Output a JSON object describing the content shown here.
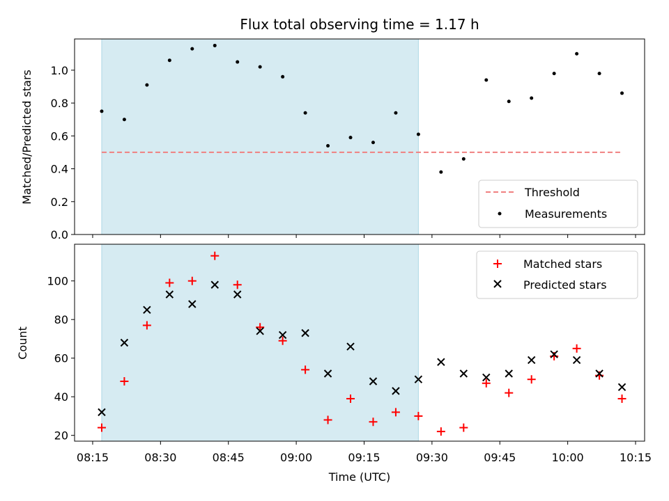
{
  "chart_data": [
    {
      "type": "scatter",
      "title": "Flux total observing time = 1.17 h",
      "ylabel": "Matched/Predicted stars",
      "ylim": [
        0,
        1.19
      ],
      "yticks": [
        0.0,
        0.2,
        0.4,
        0.6,
        0.8,
        1.0
      ],
      "xlim": [
        "08:11",
        "10:17"
      ],
      "shaded_region": [
        "08:17",
        "09:27"
      ],
      "shaded_color": "#add8e6",
      "threshold": {
        "name": "Threshold",
        "value": 0.5,
        "x": [
          "08:17",
          "10:12"
        ],
        "color": "#f08080"
      },
      "series": [
        {
          "name": "Measurements",
          "color": "#000000",
          "x": [
            "08:17",
            "08:22",
            "08:27",
            "08:32",
            "08:37",
            "08:42",
            "08:47",
            "08:52",
            "08:57",
            "09:02",
            "09:07",
            "09:12",
            "09:17",
            "09:22",
            "09:27",
            "09:32",
            "09:37",
            "09:42",
            "09:47",
            "09:52",
            "09:57",
            "10:02",
            "10:07",
            "10:12"
          ],
          "y": [
            0.75,
            0.7,
            0.91,
            1.06,
            1.13,
            1.15,
            1.05,
            1.02,
            0.96,
            0.74,
            0.54,
            0.59,
            0.56,
            0.74,
            0.61,
            0.38,
            0.46,
            0.94,
            0.81,
            0.83,
            0.98,
            1.1,
            0.98,
            0.86
          ]
        }
      ],
      "legend": {
        "placement": "lower-right",
        "entries": [
          "Threshold",
          "Measurements"
        ]
      }
    },
    {
      "type": "scatter",
      "ylabel": "Count",
      "xlabel": "Time (UTC)",
      "ylim": [
        17,
        119
      ],
      "yticks": [
        20,
        40,
        60,
        80,
        100
      ],
      "xlim": [
        "08:11",
        "10:17"
      ],
      "xticks": [
        "08:15",
        "08:30",
        "08:45",
        "09:00",
        "09:15",
        "09:30",
        "09:45",
        "10:00",
        "10:15"
      ],
      "shaded_region": [
        "08:17",
        "09:27"
      ],
      "shaded_color": "#add8e6",
      "series": [
        {
          "name": "Matched stars",
          "marker": "+",
          "color": "#ff0000",
          "x": [
            "08:17",
            "08:22",
            "08:27",
            "08:32",
            "08:37",
            "08:42",
            "08:47",
            "08:52",
            "08:57",
            "09:02",
            "09:07",
            "09:12",
            "09:17",
            "09:22",
            "09:27",
            "09:32",
            "09:37",
            "09:42",
            "09:47",
            "09:52",
            "09:57",
            "10:02",
            "10:07",
            "10:12"
          ],
          "y": [
            24,
            48,
            77,
            99,
            100,
            113,
            98,
            76,
            69,
            54,
            28,
            39,
            27,
            32,
            30,
            22,
            24,
            47,
            42,
            49,
            61,
            65,
            51,
            39
          ]
        },
        {
          "name": "Predicted stars",
          "marker": "x",
          "color": "#000000",
          "x": [
            "08:17",
            "08:22",
            "08:27",
            "08:32",
            "08:37",
            "08:42",
            "08:47",
            "08:52",
            "08:57",
            "09:02",
            "09:07",
            "09:12",
            "09:17",
            "09:22",
            "09:27",
            "09:32",
            "09:37",
            "09:42",
            "09:47",
            "09:52",
            "09:57",
            "10:02",
            "10:07",
            "10:12"
          ],
          "y": [
            32,
            68,
            85,
            93,
            88,
            98,
            93,
            74,
            72,
            73,
            52,
            66,
            48,
            43,
            49,
            58,
            52,
            50,
            52,
            59,
            62,
            59,
            52,
            45
          ]
        }
      ],
      "legend": {
        "placement": "upper-right",
        "entries": [
          "Matched stars",
          "Predicted stars"
        ]
      }
    }
  ]
}
